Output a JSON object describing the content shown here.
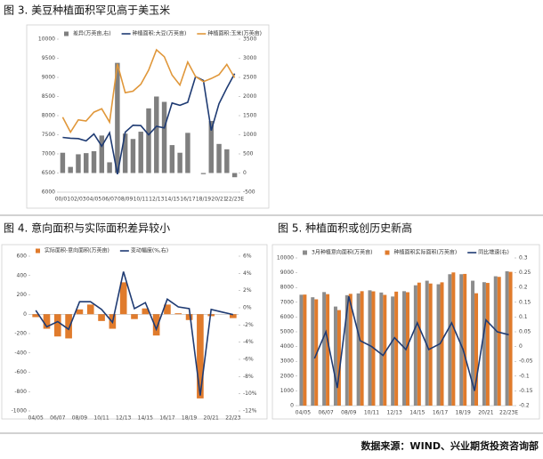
{
  "chart_data": [
    {
      "type": "combo",
      "title": "图 3. 美豆种植面积罕见高于美玉米",
      "categories": [
        "00/01",
        null,
        "02/03",
        null,
        "04/05",
        null,
        "06/07",
        null,
        "08/09",
        null,
        "10/11",
        null,
        "12/13",
        null,
        "14/15",
        null,
        "16/17",
        null,
        "18/19",
        null,
        "20/21",
        null,
        "22/23E"
      ],
      "ylim": [
        6000,
        10000
      ],
      "yticks": [
        6000,
        6500,
        7000,
        7500,
        8000,
        8500,
        9000,
        9500,
        10000
      ],
      "y2lim": [
        -500,
        3500
      ],
      "y2ticks": [
        -500,
        0,
        500,
        1000,
        1500,
        2000,
        2500,
        3000,
        3500
      ],
      "series": [
        {
          "name": "差异(万英亩,右)",
          "type": "bar",
          "axis": "y2",
          "color": "#7f7f7f",
          "values": [
            530,
            160,
            490,
            520,
            570,
            980,
            280,
            2880,
            1030,
            890,
            1080,
            1690,
            2000,
            1860,
            730,
            530,
            1050,
            0,
            -30,
            1360,
            760,
            620,
            -110
          ]
        },
        {
          "name": "种植面积:大豆(万英亩)",
          "type": "line",
          "color": "#1f3b73",
          "values": [
            7430,
            7410,
            7400,
            7340,
            7520,
            7200,
            7550,
            6470,
            7570,
            7750,
            7740,
            7500,
            7720,
            7680,
            8330,
            8270,
            8350,
            9020,
            8920,
            7610,
            8310,
            8720,
            9100
          ]
        },
        {
          "name": "种植面积:玉米(万英亩)",
          "type": "line",
          "color": "#e0973a",
          "values": [
            7960,
            7570,
            7890,
            7860,
            8090,
            8180,
            7830,
            9350,
            8600,
            8640,
            8820,
            9190,
            9720,
            9540,
            9060,
            8800,
            9400,
            9020,
            8890,
            8970,
            9070,
            9340,
            8990
          ]
        }
      ]
    },
    {
      "type": "combo",
      "title": "图 4. 意向面积与实际面积差异较小",
      "categories": [
        "04/05",
        null,
        "06/07",
        null,
        "08/09",
        null,
        "10/11",
        null,
        "12/13",
        null,
        "14/15",
        null,
        "16/17",
        null,
        "18/19",
        null,
        "20/21",
        null,
        "22/23"
      ],
      "ylim": [
        -1000,
        600
      ],
      "yticks": [
        -1000,
        -800,
        -600,
        -400,
        -200,
        0,
        200,
        400,
        600
      ],
      "y2lim": [
        -12,
        6
      ],
      "y2ticks": [
        {
          "value": -12,
          "label": "-12%"
        },
        {
          "value": -10,
          "label": "-10%"
        },
        {
          "value": -8,
          "label": "-8%"
        },
        {
          "value": -6,
          "label": "-6%"
        },
        {
          "value": -4,
          "label": "-4%"
        },
        {
          "value": -2,
          "label": "-2%"
        },
        {
          "value": 0,
          "label": "0%"
        },
        {
          "value": 2,
          "label": "2%"
        },
        {
          "value": 4,
          "label": "4%"
        },
        {
          "value": 6,
          "label": "6%"
        }
      ],
      "series": [
        {
          "name": "实际面积-意向面积(万英亩)",
          "type": "bar",
          "color": "#e07b2c",
          "values": [
            -30,
            -150,
            -230,
            -250,
            50,
            100,
            -70,
            -150,
            330,
            -50,
            60,
            -220,
            100,
            10,
            -60,
            -870,
            -20,
            0,
            -40
          ]
        },
        {
          "name": "变动幅度(%,右)",
          "type": "line",
          "axis": "y2",
          "color": "#1f3b73",
          "values": [
            -0.3,
            -2.2,
            -1.6,
            -2.5,
            0.7,
            0.7,
            -0.2,
            -1.7,
            4.2,
            -0.1,
            0.6,
            -2.5,
            1.0,
            0.1,
            -0.1,
            -10.2,
            -0.2,
            -0.5,
            -0.8
          ]
        }
      ]
    },
    {
      "type": "combo",
      "title": "图 5. 种植面积或创历史新高",
      "categories": [
        "04/05",
        null,
        "06/07",
        null,
        "08/09",
        null,
        "10/11",
        null,
        "12/13",
        null,
        "14/15",
        null,
        "16/17",
        null,
        "18/19",
        null,
        "20/21",
        null,
        "22/23E"
      ],
      "ylim": [
        0,
        10000
      ],
      "yticks": [
        0,
        1000,
        2000,
        3000,
        4000,
        5000,
        6000,
        7000,
        8000,
        9000,
        10000
      ],
      "y2lim": [
        -0.2,
        0.3
      ],
      "y2ticks": [
        -0.2,
        -0.15,
        -0.1,
        -0.05,
        0,
        0.05,
        0.1,
        0.15,
        0.2,
        0.25,
        0.3
      ],
      "series": [
        {
          "name": "3月种植意向面积(万英亩)",
          "type": "bar",
          "color": "#8c8c8c",
          "values": [
            7510,
            7340,
            7690,
            6710,
            7480,
            7600,
            7810,
            7660,
            7390,
            7750,
            8150,
            8460,
            8220,
            8900,
            8900,
            8460,
            8360,
            8760,
            9100
          ]
        },
        {
          "name": "种植面积实际面积(万英亩)",
          "type": "bar",
          "color": "#e07b2c",
          "values": [
            7520,
            7200,
            7550,
            6470,
            7570,
            7750,
            7740,
            7500,
            7720,
            7680,
            8330,
            8270,
            8350,
            9020,
            8920,
            7610,
            8310,
            8720,
            9060
          ]
        },
        {
          "name": "同比增速(右)",
          "type": "line",
          "axis": "y2",
          "color": "#1f3b73",
          "values": [
            null,
            -0.04,
            0.05,
            -0.14,
            0.17,
            0.02,
            0.0,
            -0.03,
            0.03,
            -0.01,
            0.08,
            -0.01,
            0.01,
            0.08,
            -0.01,
            -0.15,
            0.09,
            0.05,
            0.04
          ]
        }
      ]
    }
  ],
  "source": "数据来源：WIND、兴业期货投资咨询部"
}
